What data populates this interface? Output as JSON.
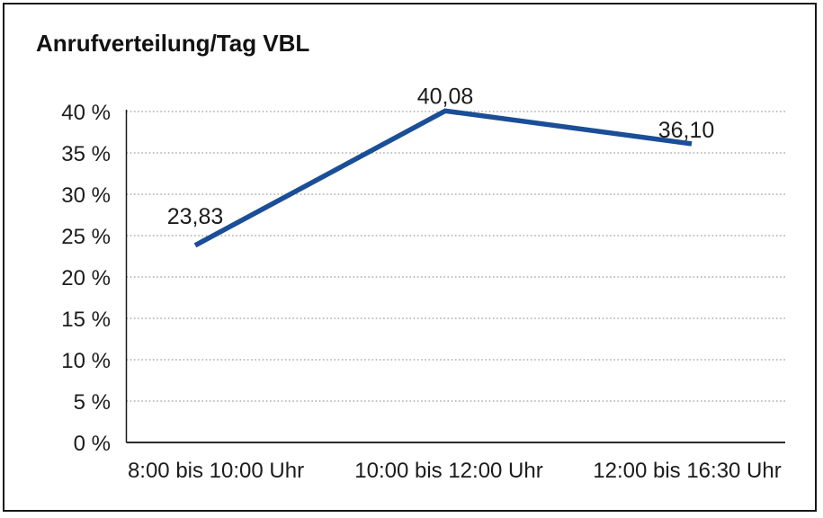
{
  "chart_data": {
    "type": "line",
    "title": "Anrufverteilung/Tag VBL",
    "categories": [
      "8:00 bis 10:00 Uhr",
      "10:00 bis 12:00 Uhr",
      "12:00 bis 16:30 Uhr"
    ],
    "values": [
      23.83,
      40.08,
      36.1
    ],
    "value_labels": [
      "23,83",
      "40,08",
      "36,10"
    ],
    "xlabel": "",
    "ylabel": "",
    "ylim": [
      0,
      40
    ],
    "yticks": [
      0,
      5,
      10,
      15,
      20,
      25,
      30,
      35,
      40
    ],
    "ytick_labels": [
      "0 %",
      "5 %",
      "10 %",
      "15 %",
      "20 %",
      "25 %",
      "30 %",
      "35 %",
      "40 %"
    ],
    "grid": "horizontal-dotted",
    "legend_position": "none",
    "line_color": "#1a4e96",
    "text_color": "#1c1c1c",
    "grid_color": "#9c9c9c",
    "axis_color": "#2a2a2a"
  }
}
